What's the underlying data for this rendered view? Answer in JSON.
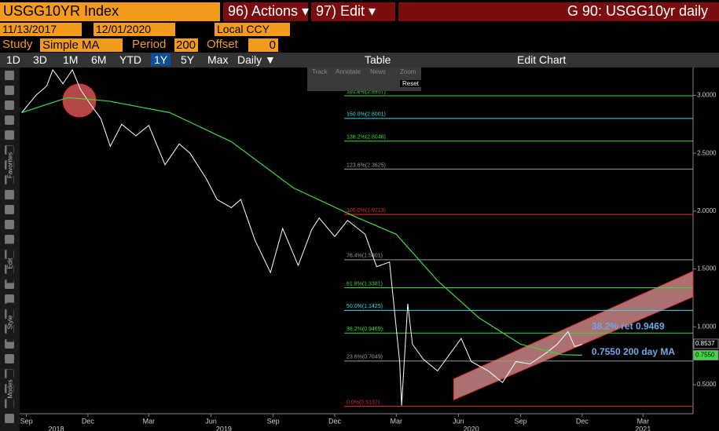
{
  "toolbar": {
    "security": "USGG10YR Index",
    "actions": "96) Actions ▾",
    "edit": "97) Edit ▾",
    "window_title": "G 90: USGG10yr daily",
    "start_date": "11/13/2017",
    "end_date": "12/01/2020",
    "currency": "Local CCY",
    "study_label": "Study",
    "study": "Simple MA",
    "period_label": "Period",
    "period": "200",
    "offset_label": "Offset",
    "offset": "0",
    "ranges": [
      "1D",
      "3D",
      "1M",
      "6M",
      "YTD",
      "1Y",
      "5Y",
      "Max"
    ],
    "frequency": "Daily ▼",
    "table": "Table",
    "edit_chart": "Edit Chart",
    "chart_tools": [
      "Track",
      "Annotate",
      "News",
      "Zoom",
      "Reset"
    ],
    "side_labels": [
      "Favorites",
      "Edit",
      "Style",
      "Modes"
    ]
  },
  "chart_data": {
    "type": "line",
    "xlim": [
      "2018-08-22",
      "2021-05-14"
    ],
    "ylim": [
      0.25,
      3.24
    ],
    "yticks": [
      {
        "value": 3.0,
        "label": "3.0000"
      },
      {
        "value": 2.5,
        "label": "2.5000"
      },
      {
        "value": 2.0,
        "label": "2.0000"
      },
      {
        "value": 1.5,
        "label": "1.5000"
      },
      {
        "value": 1.0,
        "label": "1.0000"
      },
      {
        "value": 0.5,
        "label": "0.5000"
      }
    ],
    "xticks": [
      {
        "value": "2018-09-01",
        "label": "Sep"
      },
      {
        "value": "2018-12-01",
        "label": "Dec"
      },
      {
        "value": "2019-03-01",
        "label": "Mar"
      },
      {
        "value": "2019-06-01",
        "label": "Jun"
      },
      {
        "value": "2019-09-01",
        "label": "Sep"
      },
      {
        "value": "2019-12-01",
        "label": "Dec"
      },
      {
        "value": "2020-03-01",
        "label": "Mar"
      },
      {
        "value": "2020-06-01",
        "label": "Jun"
      },
      {
        "value": "2020-09-01",
        "label": "Sep"
      },
      {
        "value": "2020-12-01",
        "label": "Dec"
      },
      {
        "value": "2021-03-01",
        "label": "Mar"
      }
    ],
    "year_ticks": [
      {
        "value": "2018-10-15",
        "label": "2018"
      },
      {
        "value": "2019-06-20",
        "label": "2019"
      },
      {
        "value": "2020-06-20",
        "label": "2020"
      },
      {
        "value": "2021-03-01",
        "label": "2021"
      }
    ],
    "series": [
      {
        "name": "USGG10YR",
        "color": "#ffffff",
        "x": [
          "2018-08-25",
          "2018-09-15",
          "2018-10-01",
          "2018-10-10",
          "2018-10-25",
          "2018-11-08",
          "2018-11-20",
          "2018-12-05",
          "2018-12-20",
          "2019-01-03",
          "2019-01-20",
          "2019-02-10",
          "2019-03-01",
          "2019-03-25",
          "2019-04-15",
          "2019-05-01",
          "2019-05-25",
          "2019-06-10",
          "2019-07-01",
          "2019-07-15",
          "2019-08-05",
          "2019-08-28",
          "2019-09-15",
          "2019-10-08",
          "2019-10-28",
          "2019-11-08",
          "2019-12-01",
          "2019-12-20",
          "2020-01-15",
          "2020-02-01",
          "2020-02-20",
          "2020-03-06",
          "2020-03-09",
          "2020-03-18",
          "2020-03-25",
          "2020-04-10",
          "2020-05-01",
          "2020-06-05",
          "2020-06-20",
          "2020-07-15",
          "2020-08-05",
          "2020-08-25",
          "2020-09-15",
          "2020-10-10",
          "2020-10-25",
          "2020-11-10",
          "2020-11-20",
          "2020-12-01"
        ],
        "values": [
          2.85,
          3.0,
          3.08,
          3.22,
          3.1,
          3.22,
          3.05,
          2.92,
          2.8,
          2.56,
          2.75,
          2.65,
          2.74,
          2.4,
          2.58,
          2.5,
          2.28,
          2.1,
          2.03,
          2.1,
          1.75,
          1.47,
          1.85,
          1.53,
          1.84,
          1.94,
          1.78,
          1.92,
          1.8,
          1.52,
          1.56,
          0.7,
          0.32,
          1.2,
          0.85,
          0.72,
          0.62,
          0.9,
          0.7,
          0.62,
          0.52,
          0.7,
          0.68,
          0.78,
          0.85,
          0.96,
          0.83,
          0.85
        ]
      },
      {
        "name": "200 day MA",
        "color": "#3fd83f",
        "x": [
          "2018-08-25",
          "2018-11-01",
          "2019-01-01",
          "2019-04-01",
          "2019-07-01",
          "2019-10-01",
          "2020-01-01",
          "2020-03-01",
          "2020-05-01",
          "2020-07-01",
          "2020-09-01",
          "2020-11-01",
          "2020-12-01"
        ],
        "values": [
          2.85,
          2.98,
          2.95,
          2.85,
          2.6,
          2.2,
          1.95,
          1.8,
          1.4,
          1.08,
          0.85,
          0.76,
          0.755
        ]
      }
    ],
    "last_price": {
      "value": 0.8537,
      "label": "0.8537"
    },
    "last_ma": {
      "value": 0.755,
      "label": "0.7550"
    },
    "fib_levels": [
      {
        "label": "161.8%(2.9957)",
        "value": 2.9957,
        "color": "#3fd83f"
      },
      {
        "label": "150.0%(2.8001)",
        "value": 2.8001,
        "color": "#40d8e8"
      },
      {
        "label": "138.2%(2.6046)",
        "value": 2.6046,
        "color": "#3fd83f"
      },
      {
        "label": "123.6%(2.3625)",
        "value": 2.3625,
        "color": "#9a9a9a"
      },
      {
        "label": "100.0%(1.9713)",
        "value": 1.9713,
        "color": "#e03030"
      },
      {
        "label": "76.4%(1.5801)",
        "value": 1.5801,
        "color": "#9a9a9a"
      },
      {
        "label": "61.8%(1.3381)",
        "value": 1.3381,
        "color": "#3fd83f"
      },
      {
        "label": "50.0%(1.1425)",
        "value": 1.1425,
        "color": "#40d8e8"
      },
      {
        "label": "38.2%(0.9469)",
        "value": 0.9469,
        "color": "#3fd83f"
      },
      {
        "label": "23.6%(0.7049)",
        "value": 0.7049,
        "color": "#9a9a9a"
      },
      {
        "label": "0.0%(0.3137)",
        "value": 0.3137,
        "color": "#e03030"
      }
    ],
    "fib_start": "2019-12-15",
    "channel": {
      "x": [
        "2020-05-25",
        "2021-05-14"
      ],
      "upper": [
        0.55,
        1.48
      ],
      "lower": [
        0.37,
        1.26
      ],
      "color": "#e03030"
    },
    "annotations": [
      {
        "text": "38.2% ret 0.9469",
        "x": "2020-12-15",
        "y": 1.0,
        "color": "#6fa8e8"
      },
      {
        "text": "0.7550 200 day MA",
        "x": "2020-12-15",
        "y": 0.78,
        "color": "#6fa8e8"
      }
    ]
  }
}
